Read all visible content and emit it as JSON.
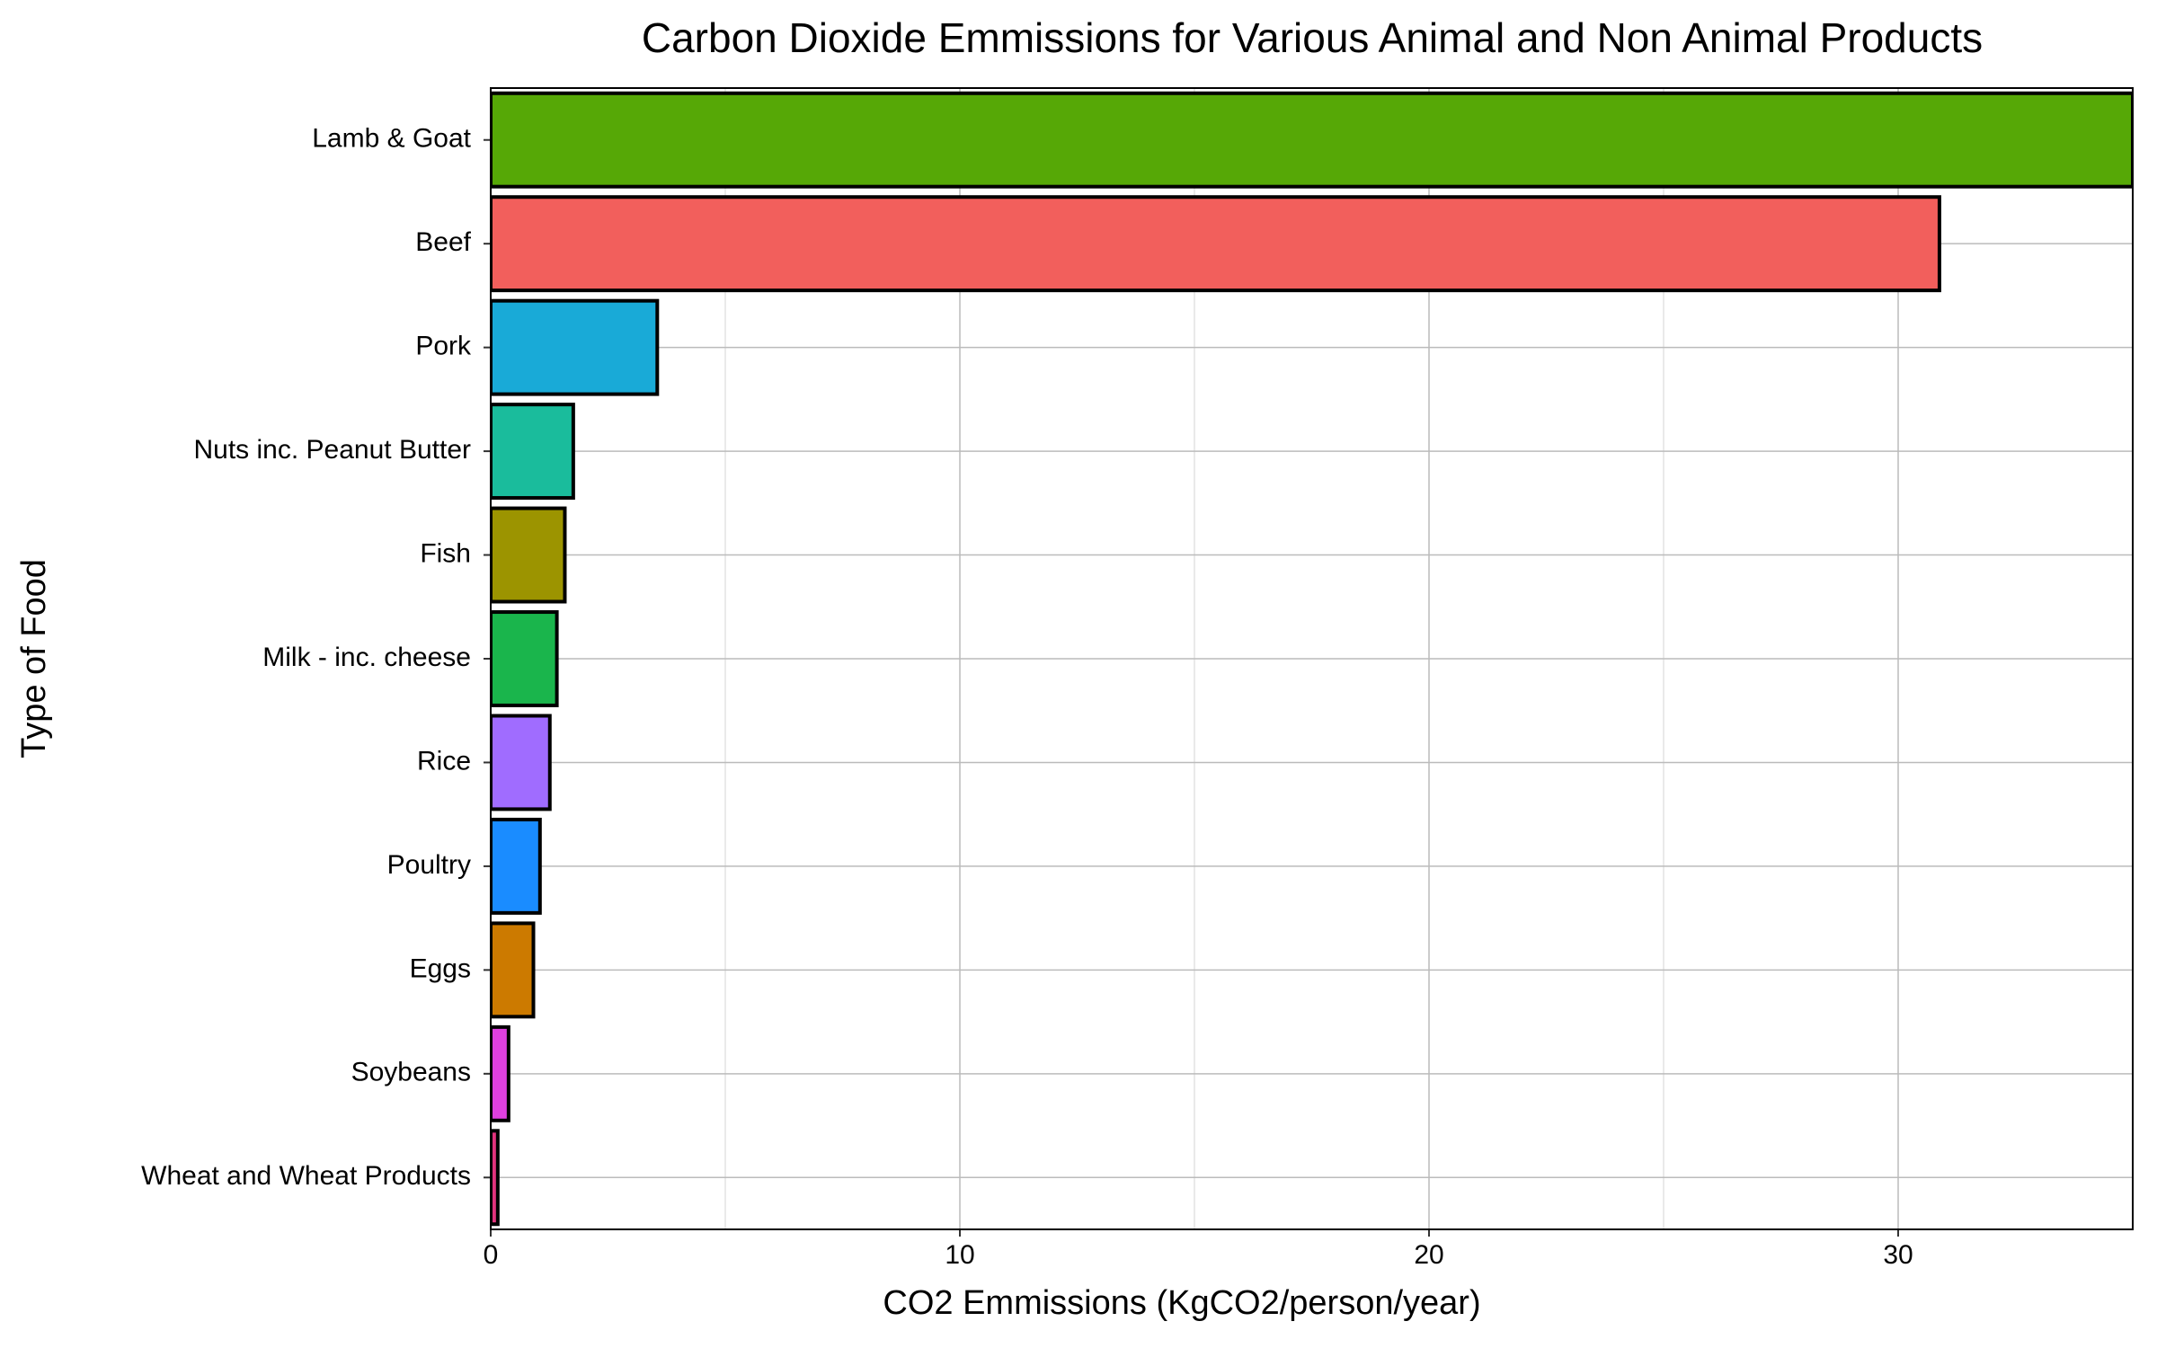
{
  "chart_data": {
    "type": "barh",
    "title": "Carbon Dioxide Emmissions for Various Animal and Non Animal Products",
    "x_label": "CO2 Emmissions (KgCO2/person/year)",
    "y_label": "Type of Food",
    "categories": [
      "Lamb & Goat",
      "Beef",
      "Pork",
      "Nuts inc. Peanut Butter",
      "Fish",
      "Milk - inc. cheese",
      "Rice",
      "Poultry",
      "Eggs",
      "Soybeans",
      "Wheat and Wheat Products"
    ],
    "values": [
      35,
      30.88,
      3.55,
      1.76,
      1.58,
      1.41,
      1.26,
      1.05,
      0.91,
      0.38,
      0.15
    ],
    "colors": [
      "#56a806",
      "#f25f5c",
      "#19aad7",
      "#1abc9c",
      "#9c9400",
      "#1ab54c",
      "#a06cff",
      "#1a8cff",
      "#cc7a00",
      "#e040e0",
      "#e3337d"
    ],
    "xlim": [
      0,
      35
    ],
    "xticks": [
      0,
      10,
      20,
      30
    ],
    "grid": true
  }
}
